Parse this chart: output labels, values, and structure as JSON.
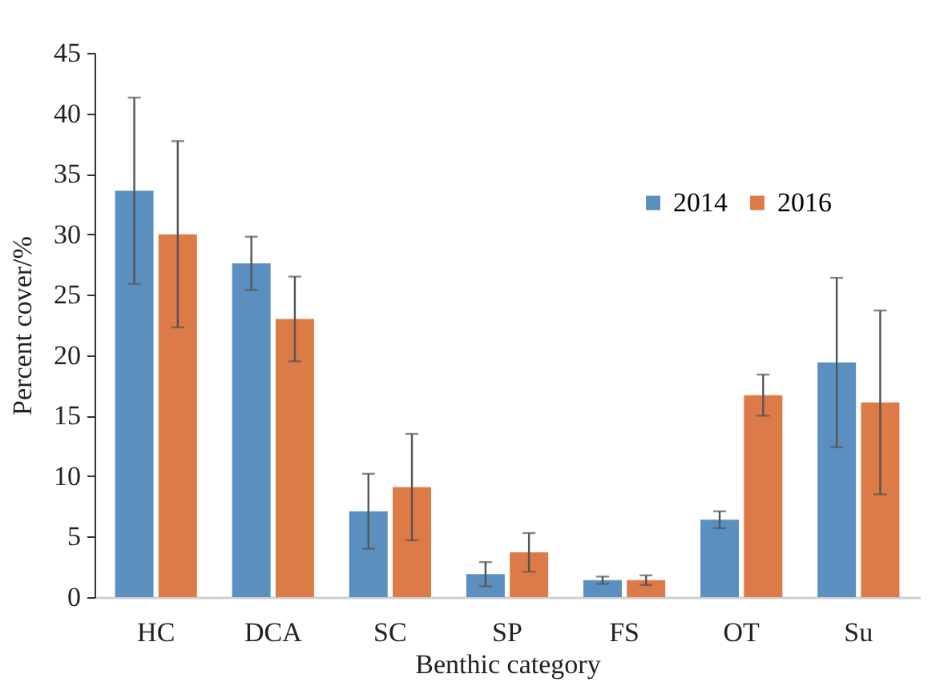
{
  "chart_data": {
    "type": "bar",
    "xlabel": "Benthic category",
    "ylabel": "Percent cover/%",
    "categories": [
      "HC",
      "DCA",
      "SC",
      "SP",
      "FS",
      "OT",
      "Su"
    ],
    "series": [
      {
        "name": "2014",
        "color": "#5b8fc0",
        "values": [
          33.6,
          27.6,
          7.1,
          1.9,
          1.4,
          6.4,
          19.4
        ],
        "errors": [
          7.7,
          2.2,
          3.1,
          1.0,
          0.3,
          0.7,
          7.0
        ]
      },
      {
        "name": "2016",
        "color": "#dc7a48",
        "values": [
          30.0,
          23.0,
          9.1,
          3.7,
          1.4,
          16.7,
          16.1
        ],
        "errors": [
          7.7,
          3.5,
          4.4,
          1.6,
          0.4,
          1.7,
          7.6
        ]
      }
    ],
    "ylim": [
      0,
      45
    ],
    "yticks": [
      0,
      5,
      10,
      15,
      20,
      25,
      30,
      35,
      40,
      45
    ],
    "grid": false,
    "legend": "top right"
  }
}
